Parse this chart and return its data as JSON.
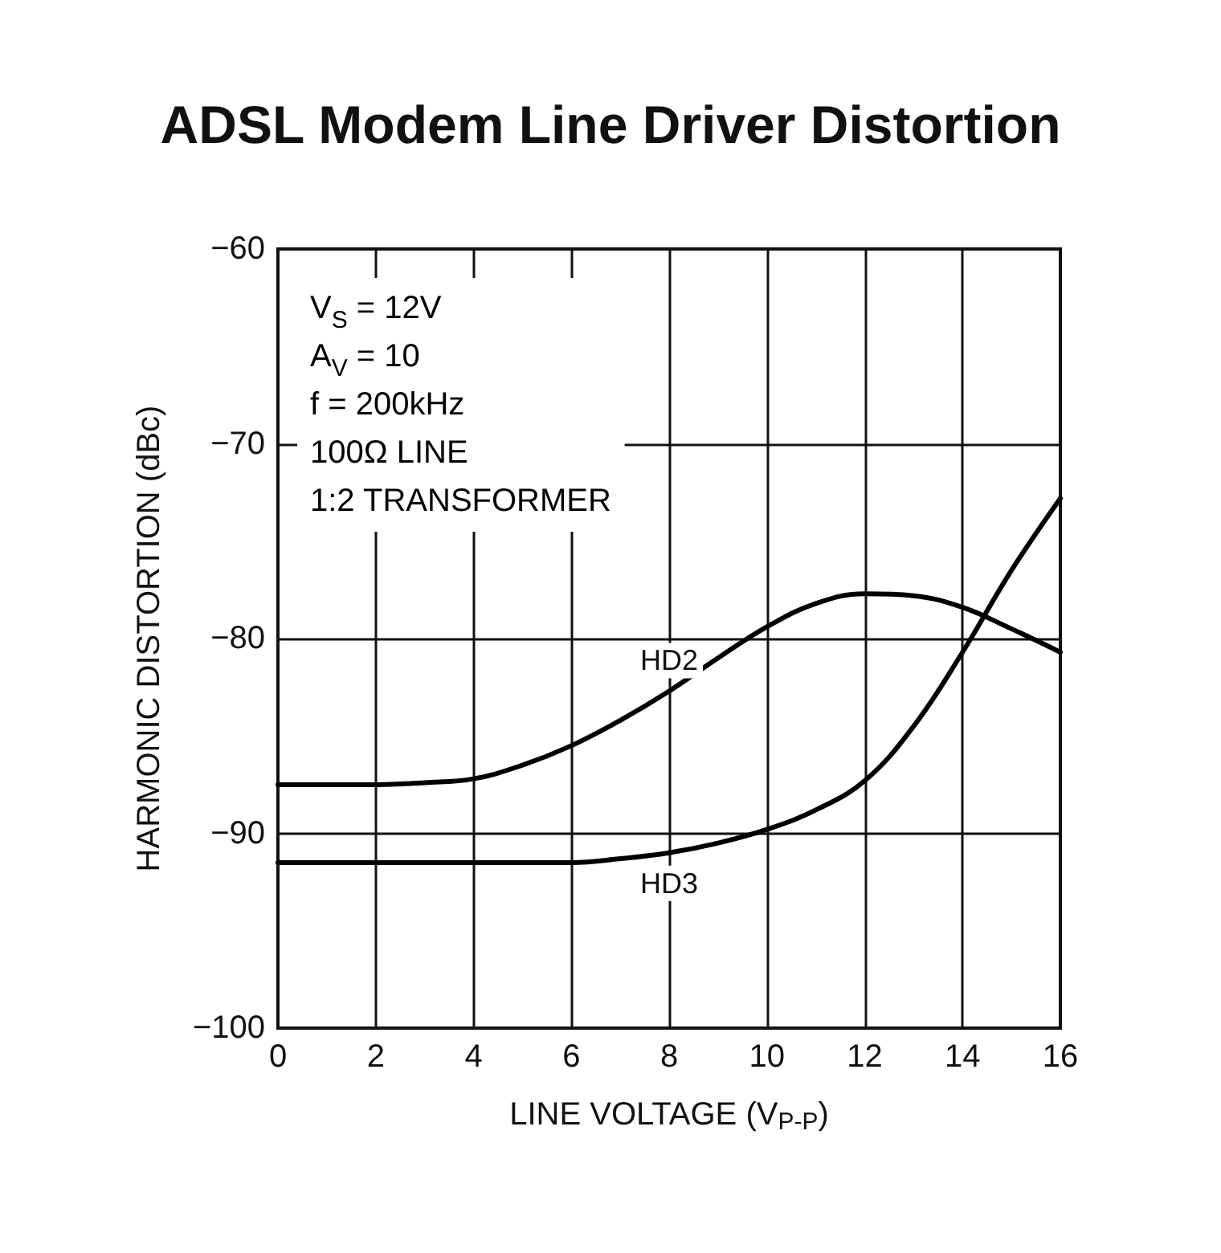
{
  "chart_data": {
    "type": "line",
    "title": "ADSL Modem Line Driver Distortion",
    "xlabel": "LINE VOLTAGE (V$_{P-P}$)",
    "ylabel": "HARMONIC DISTORTION (dBc)",
    "annotations": [
      "V$_{S}$ = 12V",
      "A$_{V}$ = 10",
      "f = 200kHz",
      "100Ω LINE",
      "1:2 TRANSFORMER"
    ],
    "x": [
      0,
      1,
      2,
      3,
      4,
      5,
      6,
      7,
      8,
      9,
      10,
      11,
      12,
      13,
      14,
      15,
      16
    ],
    "series": [
      {
        "name": "HD2",
        "color": "#000000",
        "values": [
          -87.5,
          -87.5,
          -87.5,
          -87.4,
          -87.2,
          -86.5,
          -85.5,
          -84.2,
          -82.7,
          -81.0,
          -79.4,
          -78.2,
          -77.7,
          -77.8,
          -78.4,
          -79.5,
          -80.7
        ]
      },
      {
        "name": "HD3",
        "color": "#000000",
        "values": [
          -91.5,
          -91.5,
          -91.5,
          -91.5,
          -91.5,
          -91.5,
          -91.5,
          -91.3,
          -91.0,
          -90.5,
          -89.8,
          -88.8,
          -87.3,
          -84.5,
          -80.7,
          -76.5,
          -72.8
        ]
      }
    ],
    "xlim": [
      0,
      16
    ],
    "xticks": [
      0,
      2,
      4,
      6,
      8,
      10,
      12,
      14,
      16
    ],
    "ylim": [
      -100,
      -60
    ],
    "yticks": [
      {
        "value": -100,
        "label": "−100"
      },
      {
        "value": -90,
        "label": "−90"
      },
      {
        "value": -80,
        "label": "−80"
      },
      {
        "value": -70,
        "label": "−70"
      },
      {
        "value": -60,
        "label": "−60"
      }
    ],
    "grid": true,
    "legend": false,
    "marker": "none",
    "line_style": "solid"
  }
}
